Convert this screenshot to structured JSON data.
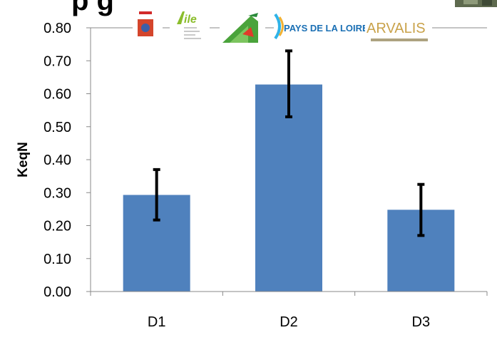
{
  "title_fragment": "p     g",
  "chart_data": {
    "type": "bar",
    "categories": [
      "D1",
      "D2",
      "D3"
    ],
    "values": [
      0.293,
      0.628,
      0.248
    ],
    "error": [
      {
        "low": 0.217,
        "high": 0.37
      },
      {
        "low": 0.53,
        "high": 0.73
      },
      {
        "low": 0.17,
        "high": 0.325
      }
    ],
    "ylabel": "KeqN",
    "ylim": [
      0,
      0.8
    ],
    "yticks": [
      "0.00",
      "0.10",
      "0.20",
      "0.30",
      "0.40",
      "0.50",
      "0.60",
      "0.70",
      "0.80"
    ],
    "grid": false,
    "bar_color": "#4F81BD",
    "errorbar_color": "#000000"
  },
  "logos": {
    "aile": "ile",
    "pays_de_la_loire": "PAYS DE LA LOIRE",
    "arvalis": "ARVALIS"
  }
}
